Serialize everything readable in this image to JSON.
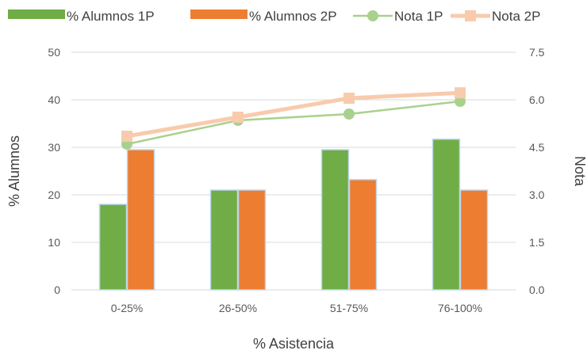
{
  "chart_data": {
    "type": "bar",
    "categories": [
      "0-25%",
      "26-50%",
      "51-75%",
      "76-100%"
    ],
    "xlabel": "% Asistencia",
    "ylabel": "% Alumnos",
    "y2label": "Nota",
    "ylim": [
      0,
      50
    ],
    "y2lim": [
      0,
      7.5
    ],
    "yticks": [
      "0",
      "10",
      "20",
      "30",
      "40",
      "50"
    ],
    "y2ticks": [
      "0.0",
      "1.5",
      "3.0",
      "4.5",
      "6.0",
      "7.5"
    ],
    "grid": true,
    "legend_position": "top",
    "series": [
      {
        "name": "% Alumnos 1P",
        "kind": "bar",
        "axis": "left",
        "color": "#70AD47",
        "values": [
          18,
          21,
          29.5,
          31.7
        ]
      },
      {
        "name": "% Alumnos 2P",
        "kind": "bar",
        "axis": "left",
        "color": "#ED7D31",
        "values": [
          29.5,
          21,
          23.2,
          21
        ]
      },
      {
        "name": "Nota 1P",
        "kind": "line",
        "marker": "circle",
        "axis": "right",
        "color": "#A9D18E",
        "values": [
          4.6,
          5.35,
          5.55,
          5.95
        ]
      },
      {
        "name": "Nota 2P",
        "kind": "line",
        "marker": "square",
        "axis": "right",
        "color": "#F8CBAD",
        "values": [
          4.85,
          5.45,
          6.05,
          6.22
        ]
      }
    ]
  }
}
